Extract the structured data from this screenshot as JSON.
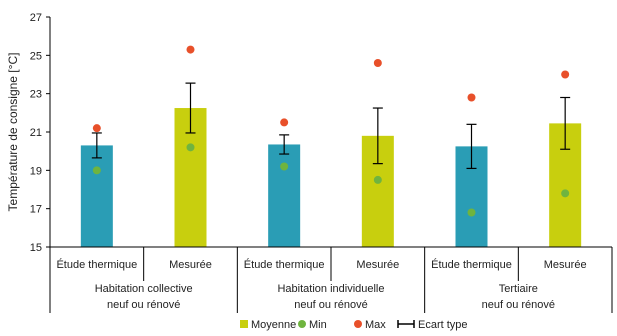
{
  "chart_data": {
    "type": "bar",
    "ylabel": "Température de consigne [°C]",
    "ylim": [
      15,
      27
    ],
    "yticks": [
      15,
      17,
      19,
      21,
      23,
      25,
      27
    ],
    "grid": false,
    "legend_position": "bottom",
    "colors": {
      "moyenne_study": "#2a9db5",
      "moyenne_measured": "#c8cf0e",
      "min": "#6fb43f",
      "max": "#e8502a",
      "error": "#000000",
      "axis": "#000000"
    },
    "groups": [
      {
        "lines": [
          "Habitation collective",
          "neuf ou rénové"
        ],
        "bars": [
          {
            "category": "Étude thermique",
            "mean": 20.3,
            "sd": 0.65,
            "min": 19.0,
            "max": 21.2
          },
          {
            "category": "Mesurée",
            "mean": 22.25,
            "sd": 1.3,
            "min": 20.2,
            "max": 25.3
          }
        ]
      },
      {
        "lines": [
          "Habitation individuelle",
          "neuf ou rénové"
        ],
        "bars": [
          {
            "category": "Étude thermique",
            "mean": 20.35,
            "sd": 0.5,
            "min": 19.2,
            "max": 21.5
          },
          {
            "category": "Mesurée",
            "mean": 20.8,
            "sd": 1.45,
            "min": 18.5,
            "max": 24.6
          }
        ]
      },
      {
        "lines": [
          "Tertiaire",
          "neuf ou rénové"
        ],
        "bars": [
          {
            "category": "Étude thermique",
            "mean": 20.25,
            "sd": 1.15,
            "min": 16.8,
            "max": 22.8
          },
          {
            "category": "Mesurée",
            "mean": 21.45,
            "sd": 1.35,
            "min": 17.8,
            "max": 24.0
          }
        ]
      }
    ],
    "legend": [
      {
        "key": "mean",
        "label": "Moyenne"
      },
      {
        "key": "min",
        "label": "Min"
      },
      {
        "key": "max",
        "label": "Max"
      },
      {
        "key": "sd",
        "label": "Ecart type"
      }
    ]
  }
}
